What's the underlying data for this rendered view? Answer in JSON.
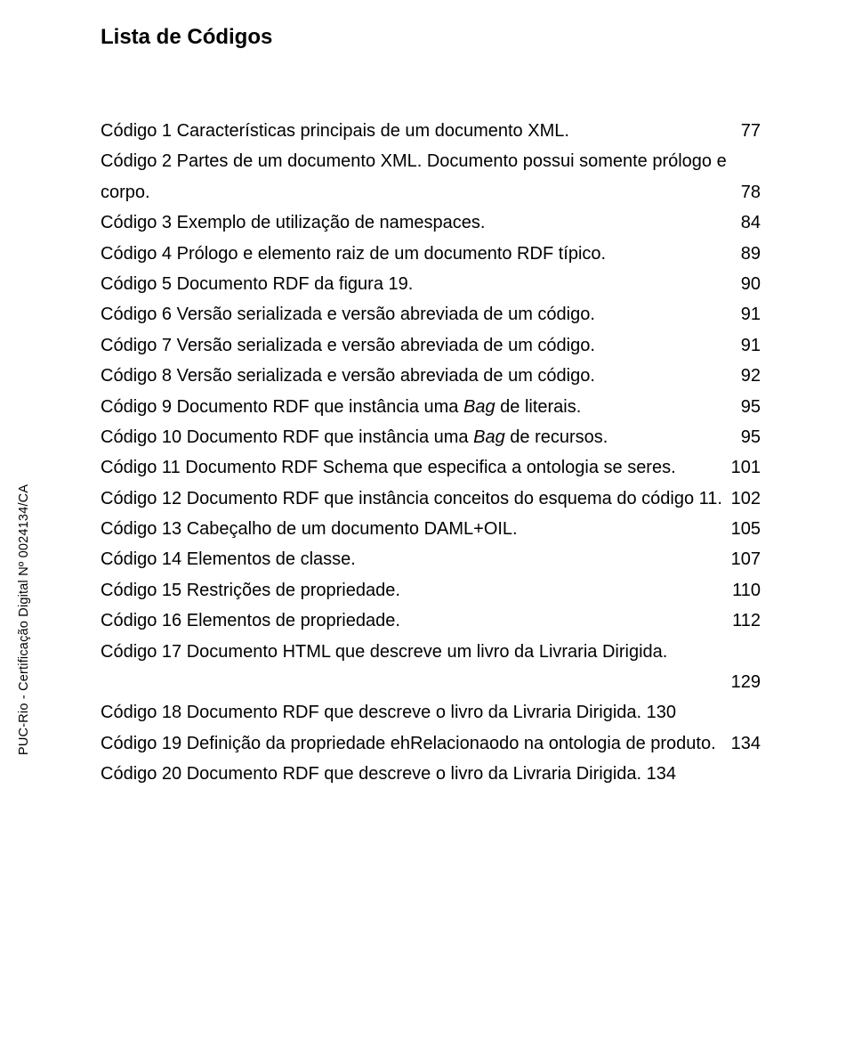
{
  "title": "Lista de Códigos",
  "side_label": "PUC-Rio - Certificação Digital Nº 0024134/CA",
  "entries": [
    {
      "text": "Código 1 Características principais de um documento XML.",
      "page": "77"
    },
    {
      "text": "Código 2 Partes de um documento XML. Documento possui somente prólogo e corpo.",
      "page": "78"
    },
    {
      "text": "Código 3 Exemplo de utilização de namespaces.",
      "page": "84"
    },
    {
      "text": "Código 4 Prólogo e elemento raiz de um documento RDF típico.",
      "page": "89"
    },
    {
      "text": "Código 5 Documento RDF da figura 19.",
      "page": "90"
    },
    {
      "text": "Código 6 Versão serializada e versão abreviada de um código.",
      "page": "91"
    },
    {
      "text": "Código 7 Versão serializada e versão abreviada de um código.",
      "page": "91"
    },
    {
      "text": "Código 8 Versão serializada e versão abreviada de um código.",
      "page": "92"
    },
    {
      "text_pre": "Código 9 Documento RDF que instância uma ",
      "text_italic": "Bag",
      "text_post": " de literais.",
      "page": "95"
    },
    {
      "text_pre": "Código 10 Documento RDF que instância uma ",
      "text_italic": "Bag",
      "text_post": " de recursos.",
      "page": "95"
    },
    {
      "text": "Código 11 Documento RDF Schema que especifica a ontologia se seres.",
      "page": "101"
    },
    {
      "text": "Código 12 Documento RDF que instância conceitos do esquema do código 11.",
      "page": "102"
    },
    {
      "text": "Código 13 Cabeçalho de um documento DAML+OIL.",
      "page": "105"
    },
    {
      "text": "Código 14 Elementos de classe.",
      "page": "107"
    },
    {
      "text": "Código 15 Restrições de propriedade.",
      "page": "110"
    },
    {
      "text": "Código 16 Elementos de propriedade.",
      "page": "112"
    },
    {
      "text": "Código 17 Documento HTML que descreve um livro da Livraria Dirigida.",
      "page": "129",
      "page_own_line": true
    },
    {
      "text": "Código 18 Documento RDF que descreve o livro da Livraria Dirigida.",
      "page": "130",
      "inline_trailing": true
    },
    {
      "text": "Código 19 Definição da propriedade ehRelacionaodo na ontologia de produto.",
      "page": "134"
    },
    {
      "text": "Código 20 Documento RDF que descreve o livro da Livraria Dirigida.",
      "page": "134",
      "inline_trailing": true
    }
  ]
}
